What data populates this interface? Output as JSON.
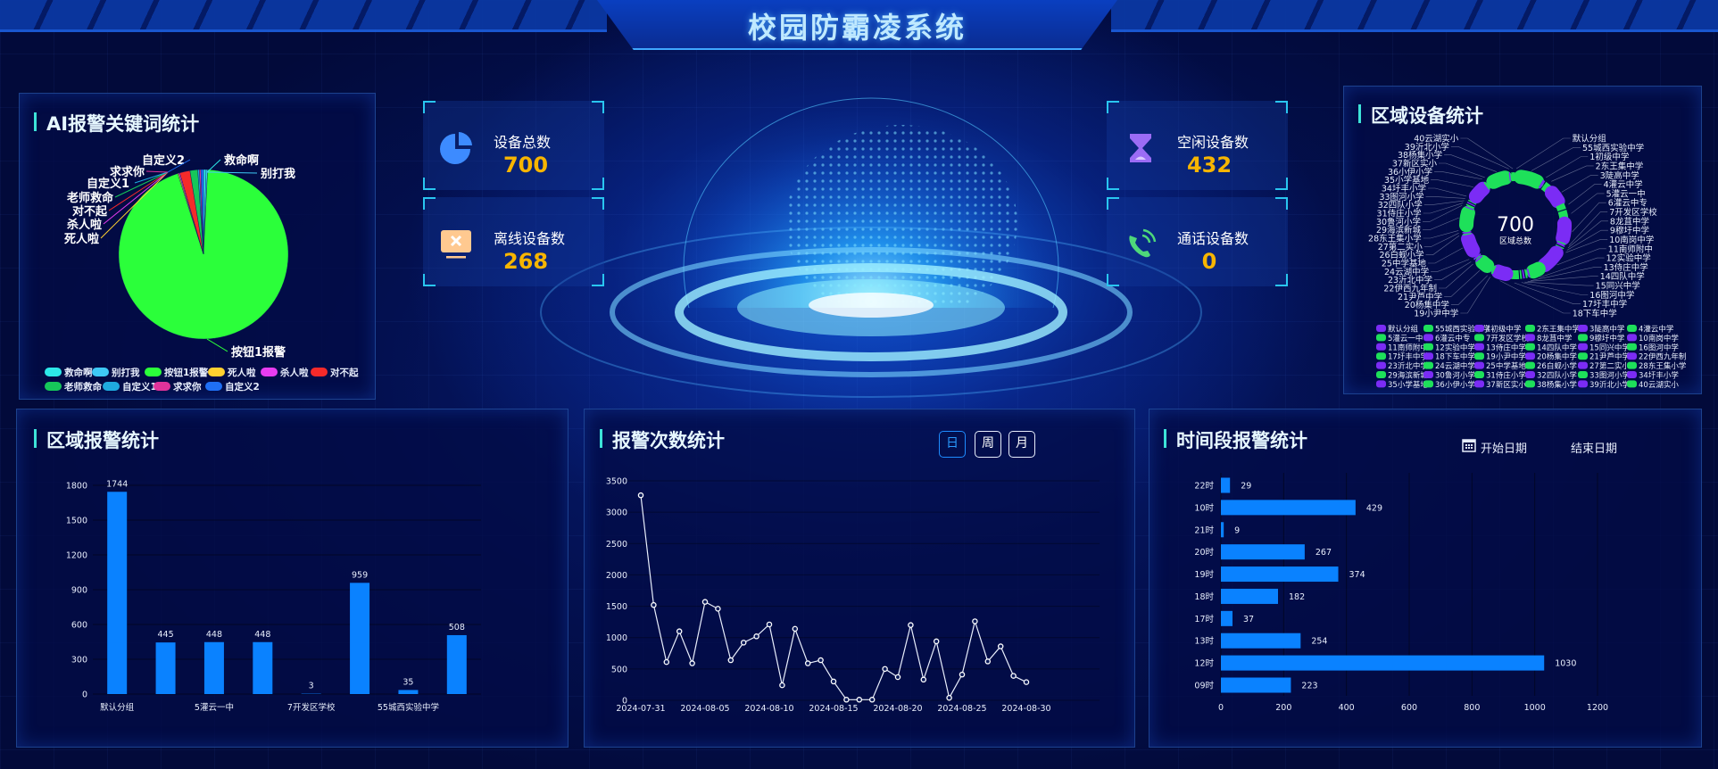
{
  "header": {
    "title": "校园防霸凌系统"
  },
  "panels": {
    "ai_keywords": {
      "title": "AI报警关键词统计"
    },
    "region_devices": {
      "title": "区域设备统计",
      "center_value": "700",
      "center_label": "区域总数"
    },
    "region_alarms": {
      "title": "区域报警统计"
    },
    "alarm_counts": {
      "title": "报警次数统计",
      "buttons": [
        {
          "label": "日",
          "active": true
        },
        {
          "label": "周",
          "active": false
        },
        {
          "label": "月",
          "active": false
        }
      ]
    },
    "time_alarms": {
      "title": "时间段报警统计",
      "start_date": "开始日期",
      "end_date": "结束日期",
      "calendar_icon": "calendar-icon"
    }
  },
  "stats": [
    {
      "label": "设备总数",
      "value": "700",
      "icon": "pie-chart-icon",
      "color": "#3d8bff"
    },
    {
      "label": "离线设备数",
      "value": "268",
      "icon": "offline-monitor-icon",
      "color": "#ffc990"
    },
    {
      "label": "空闲设备数",
      "value": "432",
      "icon": "hourglass-icon",
      "color": "#9b6cf5"
    },
    {
      "label": "通话设备数",
      "value": "0",
      "icon": "phone-call-icon",
      "color": "#4ed87a"
    }
  ],
  "colors": {
    "accent": "#3de3d8",
    "bar": "#0a82ff",
    "value": "#f7b500",
    "ring_purple": "#7b2cf5",
    "ring_green": "#1ee05a"
  },
  "chart_data": [
    {
      "type": "pie",
      "slices": [
        {
          "name": "救命啊",
          "value": 5,
          "color": "#2de8e8"
        },
        {
          "name": "别打我",
          "value": 3,
          "color": "#3ec9f5"
        },
        {
          "name": "按钮1报警",
          "value": 960,
          "color": "#2bff3a"
        },
        {
          "name": "死人啦",
          "value": 2,
          "color": "#ffd030"
        },
        {
          "name": "杀人啦",
          "value": 2,
          "color": "#e83cf0"
        },
        {
          "name": "对不起",
          "value": 20,
          "color": "#f52a2a"
        },
        {
          "name": "老师救命",
          "value": 15,
          "color": "#16c75a"
        },
        {
          "name": "自定义1",
          "value": 3,
          "color": "#1faadf"
        },
        {
          "name": "求求你",
          "value": 3,
          "color": "#e0339a"
        },
        {
          "name": "自定义2",
          "value": 5,
          "color": "#1f6ff5"
        }
      ],
      "legend": "bottom"
    },
    {
      "type": "pie",
      "variant": "donut",
      "total": 700,
      "legend": "bottom",
      "items": [
        {
          "name": "默认分组",
          "value": 4,
          "color": "#7b2cf5"
        },
        {
          "name": "55城西实验中学",
          "value": 55,
          "color": "#1ee05a"
        },
        {
          "name": "1初级中学",
          "value": 8,
          "color": "#7b2cf5"
        },
        {
          "name": "2东王集中学",
          "value": 18,
          "color": "#1ee05a"
        },
        {
          "name": "3陡高中学",
          "value": 40,
          "color": "#7b2cf5"
        },
        {
          "name": "4灌云中学",
          "value": 15,
          "color": "#1ee05a"
        },
        {
          "name": "5灌云一中",
          "value": 22,
          "color": "#1ee05a"
        },
        {
          "name": "6灌云中专",
          "value": 50,
          "color": "#7b2cf5"
        },
        {
          "name": "7开发区学校",
          "value": 5,
          "color": "#1ee05a"
        },
        {
          "name": "8龙苴中学",
          "value": 5,
          "color": "#7b2cf5"
        },
        {
          "name": "9穆圩中学",
          "value": 5,
          "color": "#1ee05a"
        },
        {
          "name": "10南岗中学",
          "value": 5,
          "color": "#7b2cf5"
        },
        {
          "name": "11南师附中",
          "value": 55,
          "color": "#7b2cf5"
        },
        {
          "name": "12实验中学",
          "value": 30,
          "color": "#1ee05a"
        },
        {
          "name": "13侍庄中学",
          "value": 6,
          "color": "#7b2cf5"
        },
        {
          "name": "14四队中学",
          "value": 6,
          "color": "#1ee05a"
        },
        {
          "name": "15同兴中学",
          "value": 6,
          "color": "#7b2cf5"
        },
        {
          "name": "16图河中学",
          "value": 6,
          "color": "#1ee05a"
        },
        {
          "name": "17圩丰中学",
          "value": 22,
          "color": "#1ee05a"
        },
        {
          "name": "18下车中学",
          "value": 35,
          "color": "#7b2cf5"
        },
        {
          "name": "19小尹中学",
          "value": 6,
          "color": "#1ee05a"
        },
        {
          "name": "20杨集中学",
          "value": 6,
          "color": "#7b2cf5"
        },
        {
          "name": "21尹芦中学",
          "value": 30,
          "color": "#1ee05a"
        },
        {
          "name": "22伊西九年制",
          "value": 6,
          "color": "#7b2cf5"
        },
        {
          "name": "23沂北中学",
          "value": 6,
          "color": "#7b2cf5"
        },
        {
          "name": "24云湖中学",
          "value": 6,
          "color": "#1ee05a"
        },
        {
          "name": "25中学基地",
          "value": 45,
          "color": "#7b2cf5"
        },
        {
          "name": "26白蚬小学",
          "value": 5,
          "color": "#1ee05a"
        },
        {
          "name": "27第二实小",
          "value": 5,
          "color": "#7b2cf5"
        },
        {
          "name": "28东王集小学",
          "value": 5,
          "color": "#1ee05a"
        },
        {
          "name": "29海滨新城",
          "value": 45,
          "color": "#1ee05a"
        },
        {
          "name": "30鲁河小学",
          "value": 5,
          "color": "#7b2cf5"
        },
        {
          "name": "31侍庄小学",
          "value": 5,
          "color": "#1ee05a"
        },
        {
          "name": "32四队小学",
          "value": 5,
          "color": "#7b2cf5"
        },
        {
          "name": "33图河小学",
          "value": 5,
          "color": "#1ee05a"
        },
        {
          "name": "34圩丰小学",
          "value": 5,
          "color": "#7b2cf5"
        },
        {
          "name": "35小学基地",
          "value": 40,
          "color": "#7b2cf5"
        },
        {
          "name": "36小伊小学",
          "value": 6,
          "color": "#1ee05a"
        },
        {
          "name": "37新区实小",
          "value": 6,
          "color": "#7b2cf5"
        },
        {
          "name": "38杨集小学",
          "value": 45,
          "color": "#1ee05a"
        },
        {
          "name": "39沂北小学",
          "value": 5,
          "color": "#7b2cf5"
        },
        {
          "name": "40云湖实小",
          "value": 10,
          "color": "#1ee05a"
        }
      ]
    },
    {
      "type": "bar",
      "categories": [
        "默认分组",
        "",
        "5灌云一中",
        "",
        "7开发区学校",
        "",
        "55城西实验中学",
        ""
      ],
      "values": [
        1744,
        445,
        448,
        448,
        3,
        959,
        35,
        508
      ],
      "ylim": [
        0,
        1800
      ],
      "yticks": [
        0,
        300,
        600,
        900,
        1200,
        1500,
        1800
      ],
      "grid": true
    },
    {
      "type": "line",
      "x": [
        "2024-07-31",
        "2024-08-01",
        "2024-08-02",
        "2024-08-03",
        "2024-08-04",
        "2024-08-05",
        "2024-08-06",
        "2024-08-07",
        "2024-08-08",
        "2024-08-09",
        "2024-08-10",
        "2024-08-11",
        "2024-08-12",
        "2024-08-13",
        "2024-08-14",
        "2024-08-15",
        "2024-08-16",
        "2024-08-17",
        "2024-08-18",
        "2024-08-19",
        "2024-08-20",
        "2024-08-21",
        "2024-08-22",
        "2024-08-23",
        "2024-08-24",
        "2024-08-25",
        "2024-08-26",
        "2024-08-27",
        "2024-08-28",
        "2024-08-29",
        "2024-08-30"
      ],
      "xticks": [
        "2024-07-31",
        "2024-08-05",
        "2024-08-10",
        "2024-08-15",
        "2024-08-20",
        "2024-08-25",
        "2024-08-30"
      ],
      "values": [
        3270,
        1520,
        610,
        1100,
        590,
        1570,
        1460,
        640,
        920,
        1020,
        1210,
        240,
        1140,
        590,
        640,
        300,
        10,
        10,
        10,
        500,
        370,
        1200,
        330,
        940,
        40,
        410,
        1260,
        620,
        860,
        390,
        290
      ],
      "ylim": [
        0,
        3500
      ],
      "yticks": [
        0,
        500,
        1000,
        1500,
        2000,
        2500,
        3000,
        3500
      ],
      "grid": true
    },
    {
      "type": "bar",
      "orientation": "horizontal",
      "categories": [
        "22时",
        "10时",
        "21时",
        "20时",
        "19时",
        "18时",
        "17时",
        "13时",
        "12时",
        "09时"
      ],
      "values": [
        29,
        429,
        9,
        267,
        374,
        182,
        37,
        254,
        1030,
        223
      ],
      "xlim": [
        0,
        1200
      ],
      "xticks": [
        0,
        200,
        400,
        600,
        800,
        1000,
        1200
      ],
      "grid": true
    }
  ]
}
